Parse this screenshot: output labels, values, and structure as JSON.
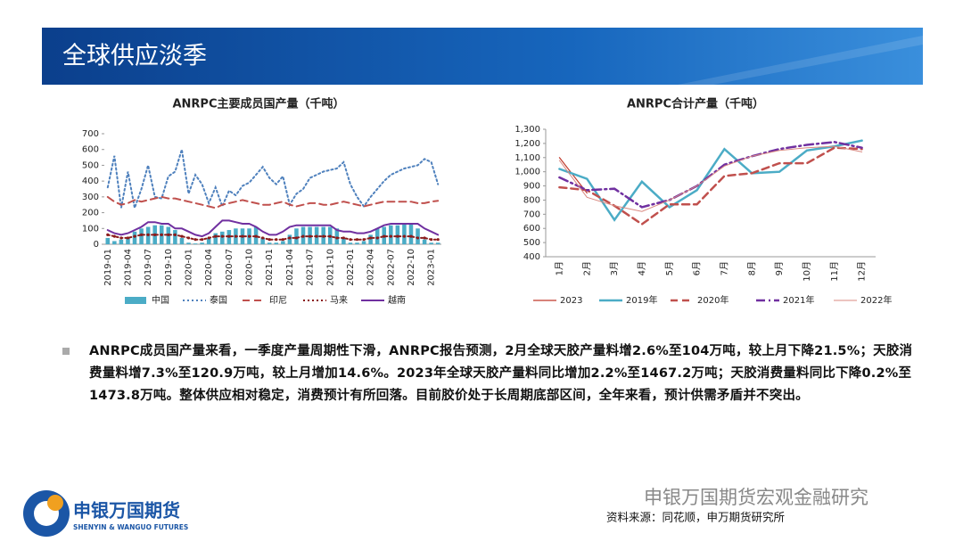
{
  "header": {
    "title": "全球供应淡季"
  },
  "paragraph": "ANRPC成员国产量来看，一季度产量周期性下滑，ANRPC报告预测，2月全球天胶产量料增2.6%至104万吨，较上月下降21.5%；天胶消费量料增7.3%至120.9万吨，较上月增加14.6%。2023年全球天胶产量料同比增加2.2%至1467.2万吨；天胶消费量料同比下降0.2%至1473.8万吨。整体供应相对稳定，消费预计有所回落。目前胶价处于长周期底部区间，全年来看，预计供需矛盾并不突出。",
  "footer": {
    "logo_name": "申银万国期货",
    "logo_en": "SHENYIN & WANGUO FUTURES",
    "source": "资料来源：同花顺，申万期货研究所",
    "watermark": "申银万国期货宏观金融研究"
  },
  "chart_data": [
    {
      "type": "line",
      "title": "ANRPC主要成员国产量（千吨）",
      "categories": [
        "2019-01",
        null,
        null,
        "2019-04",
        null,
        null,
        "2019-07",
        null,
        null,
        "2019-10",
        null,
        null,
        "2020-01",
        null,
        null,
        "2020-04",
        null,
        null,
        "2020-07",
        null,
        null,
        "2020-10",
        null,
        null,
        "2021-01",
        null,
        null,
        "2021-04",
        null,
        null,
        "2021-07",
        null,
        null,
        "2021-10",
        null,
        null,
        "2022-01",
        null,
        null,
        "2022-04",
        null,
        null,
        "2022-07",
        null,
        null,
        "2022-10",
        null,
        null,
        "2023-01",
        null
      ],
      "ylim": [
        0,
        700
      ],
      "yticks": [
        0,
        100,
        200,
        300,
        400,
        500,
        600,
        700
      ],
      "series": [
        {
          "name": "中国",
          "type": "bar",
          "color": "#4bacc6",
          "values": [
            40,
            20,
            30,
            40,
            80,
            100,
            110,
            120,
            120,
            110,
            90,
            40,
            10,
            5,
            10,
            40,
            70,
            80,
            90,
            100,
            100,
            100,
            110,
            40,
            10,
            10,
            20,
            60,
            100,
            110,
            110,
            110,
            110,
            110,
            100,
            40,
            10,
            10,
            20,
            60,
            100,
            110,
            120,
            120,
            130,
            130,
            100,
            30,
            10,
            10
          ]
        },
        {
          "name": "泰国",
          "style": "dotted",
          "color": "#4f81bd",
          "values": [
            360,
            560,
            230,
            460,
            230,
            350,
            500,
            300,
            290,
            430,
            460,
            600,
            320,
            440,
            380,
            260,
            360,
            240,
            340,
            310,
            370,
            390,
            440,
            490,
            420,
            380,
            430,
            250,
            320,
            350,
            420,
            440,
            460,
            470,
            480,
            520,
            380,
            300,
            240,
            300,
            350,
            400,
            440,
            460,
            480,
            490,
            500,
            540,
            520,
            380
          ]
        },
        {
          "name": "印尼",
          "style": "dashed",
          "color": "#c0504d",
          "values": [
            300,
            270,
            250,
            260,
            280,
            270,
            280,
            290,
            300,
            290,
            290,
            280,
            270,
            260,
            250,
            240,
            230,
            250,
            260,
            270,
            280,
            270,
            260,
            250,
            250,
            260,
            270,
            250,
            240,
            250,
            260,
            260,
            250,
            250,
            260,
            270,
            260,
            250,
            240,
            250,
            260,
            270,
            270,
            270,
            270,
            270,
            260,
            260,
            270,
            275
          ]
        },
        {
          "name": "马来",
          "style": "dotted",
          "marker": true,
          "color": "#8b1a1a",
          "values": [
            60,
            50,
            40,
            40,
            50,
            60,
            60,
            60,
            60,
            60,
            60,
            50,
            40,
            30,
            30,
            40,
            50,
            50,
            50,
            50,
            50,
            50,
            50,
            40,
            30,
            30,
            30,
            40,
            40,
            50,
            50,
            50,
            50,
            50,
            40,
            40,
            30,
            30,
            30,
            40,
            40,
            50,
            50,
            50,
            50,
            50,
            40,
            40,
            30,
            30
          ]
        },
        {
          "name": "越南",
          "style": "solid",
          "color": "#7030a0",
          "values": [
            90,
            70,
            60,
            70,
            90,
            110,
            140,
            140,
            130,
            130,
            100,
            100,
            80,
            60,
            50,
            70,
            110,
            150,
            150,
            140,
            130,
            130,
            110,
            80,
            60,
            60,
            80,
            110,
            120,
            120,
            120,
            120,
            120,
            120,
            90,
            80,
            80,
            70,
            70,
            80,
            100,
            120,
            130,
            130,
            130,
            130,
            130,
            100,
            80,
            60
          ]
        }
      ]
    },
    {
      "type": "line",
      "title": "ANRPC合计产量（千吨）",
      "categories": [
        "1月",
        "2月",
        "3月",
        "4月",
        "5月",
        "6月",
        "7月",
        "8月",
        "9月",
        "10月",
        "11月",
        "12月"
      ],
      "ylim": [
        400,
        1300
      ],
      "yticks": [
        400,
        500,
        600,
        700,
        800,
        900,
        {
          "value": 1000,
          "label": "1,000"
        },
        {
          "value": 1100,
          "label": "1,100"
        },
        {
          "value": 1200,
          "label": "1,200"
        },
        {
          "value": 1300,
          "label": "1,300"
        }
      ],
      "series": [
        {
          "name": "2023",
          "style": "solid",
          "width": 1.2,
          "color": "#c0392b",
          "values": [
            1100,
            850,
            null,
            null,
            null,
            null,
            null,
            null,
            null,
            null,
            null,
            null
          ]
        },
        {
          "name": "2019年",
          "style": "solid",
          "width": 2.5,
          "color": "#4bacc6",
          "values": [
            1020,
            950,
            660,
            930,
            750,
            870,
            1160,
            990,
            1000,
            1150,
            1180,
            1220
          ]
        },
        {
          "name": "2020年",
          "style": "dashed",
          "width": 2.5,
          "color": "#c0504d",
          "values": [
            890,
            870,
            760,
            630,
            770,
            770,
            970,
            990,
            1060,
            1060,
            1170,
            1160
          ]
        },
        {
          "name": "2021年",
          "style": "dashdot",
          "width": 2.5,
          "color": "#7030a0",
          "values": [
            960,
            870,
            880,
            750,
            800,
            900,
            1050,
            1110,
            1160,
            1190,
            1210,
            1170
          ]
        },
        {
          "name": "2022年",
          "style": "solid",
          "width": 1,
          "color": "#d98880",
          "values": [
            1080,
            820,
            760,
            720,
            800,
            900,
            1040,
            1110,
            1150,
            1170,
            1180,
            1140
          ]
        }
      ]
    }
  ]
}
